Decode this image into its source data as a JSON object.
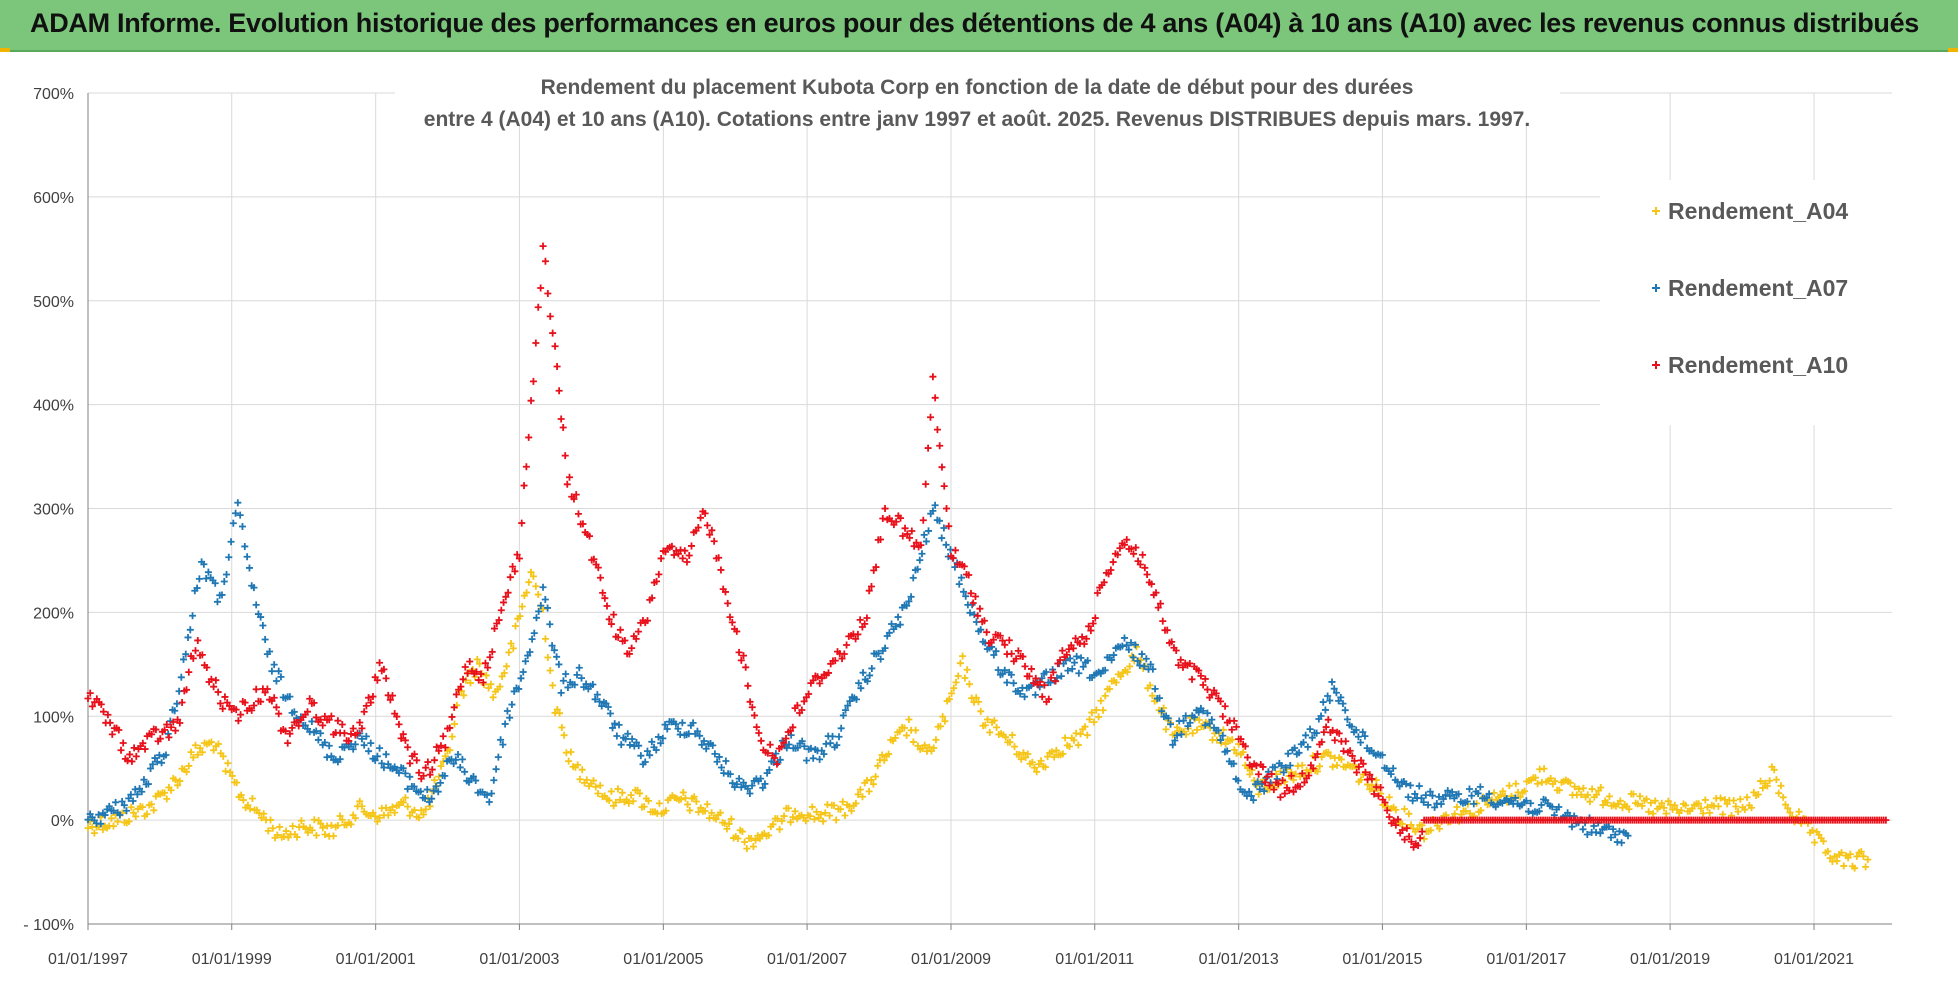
{
  "banner": {
    "title": "ADAM Informe. Evolution historique des performances en euros pour des détentions de 4 ans (A04) à 10 ans (A10) avec les revenus connus distribués"
  },
  "colors": {
    "A04": "#f5c518",
    "A07": "#1f77b4",
    "A10": "#e8101a",
    "banner": "#7cc67c"
  },
  "chart_data": {
    "type": "scatter",
    "title": "Rendement du placement Kubota Corp en fonction de la date de début pour des durées",
    "subtitle": "entre 4 (A04) et 10 ans (A10). Cotations entre janv 1997 et août. 2025. Revenus DISTRIBUES depuis mars. 1997.",
    "x_ticks": [
      "01/01/1997",
      "01/01/1999",
      "01/01/2001",
      "01/01/2003",
      "01/01/2005",
      "01/01/2007",
      "01/01/2009",
      "01/01/2011",
      "01/01/2013",
      "01/01/2015",
      "01/01/2017",
      "01/01/2019",
      "01/01/2021"
    ],
    "y_ticks": [
      "- 100%",
      "0%",
      "100%",
      "200%",
      "300%",
      "400%",
      "500%",
      "600%",
      "700%"
    ],
    "xlim": [
      "1997-01-01",
      "2022-02-01"
    ],
    "ylim": [
      -100,
      700
    ],
    "grid": true,
    "legend_position": "top-right",
    "marker": "+",
    "series": [
      {
        "name": "Rendement_A04",
        "key": "A04",
        "points": [
          [
            "1997-01-01",
            -5
          ],
          [
            "1997-06-01",
            0
          ],
          [
            "1997-12-01",
            15
          ],
          [
            "1998-04-01",
            40
          ],
          [
            "1998-07-01",
            65
          ],
          [
            "1998-10-01",
            75
          ],
          [
            "1998-12-01",
            50
          ],
          [
            "1999-03-01",
            20
          ],
          [
            "1999-06-01",
            5
          ],
          [
            "1999-09-01",
            -15
          ],
          [
            "2000-01-01",
            -5
          ],
          [
            "2000-06-01",
            -10
          ],
          [
            "2000-10-01",
            10
          ],
          [
            "2001-02-01",
            5
          ],
          [
            "2001-06-01",
            15
          ],
          [
            "2001-09-01",
            5
          ],
          [
            "2002-01-01",
            60
          ],
          [
            "2002-03-01",
            120
          ],
          [
            "2002-06-01",
            150
          ],
          [
            "2002-09-01",
            120
          ],
          [
            "2002-12-01",
            170
          ],
          [
            "2003-03-01",
            240
          ],
          [
            "2003-05-01",
            200
          ],
          [
            "2003-07-01",
            110
          ],
          [
            "2003-10-01",
            50
          ],
          [
            "2004-01-01",
            40
          ],
          [
            "2004-04-01",
            20
          ],
          [
            "2004-08-01",
            25
          ],
          [
            "2004-12-01",
            10
          ],
          [
            "2005-04-01",
            20
          ],
          [
            "2005-08-01",
            10
          ],
          [
            "2005-12-01",
            -5
          ],
          [
            "2006-03-01",
            -20
          ],
          [
            "2006-07-01",
            -10
          ],
          [
            "2006-11-01",
            10
          ],
          [
            "2007-03-01",
            5
          ],
          [
            "2007-07-01",
            10
          ],
          [
            "2007-11-01",
            30
          ],
          [
            "2008-03-01",
            70
          ],
          [
            "2008-06-01",
            90
          ],
          [
            "2008-09-01",
            60
          ],
          [
            "2008-12-01",
            100
          ],
          [
            "2009-03-01",
            150
          ],
          [
            "2009-06-01",
            100
          ],
          [
            "2009-09-01",
            85
          ],
          [
            "2009-12-01",
            70
          ],
          [
            "2010-03-01",
            50
          ],
          [
            "2010-07-01",
            70
          ],
          [
            "2010-11-01",
            80
          ],
          [
            "2011-02-01",
            110
          ],
          [
            "2011-05-01",
            140
          ],
          [
            "2011-08-01",
            160
          ],
          [
            "2011-11-01",
            120
          ],
          [
            "2012-02-01",
            80
          ],
          [
            "2012-05-01",
            90
          ],
          [
            "2012-09-01",
            85
          ],
          [
            "2013-01-01",
            70
          ],
          [
            "2013-04-01",
            30
          ],
          [
            "2013-08-01",
            40
          ],
          [
            "2013-12-01",
            50
          ],
          [
            "2014-04-01",
            60
          ],
          [
            "2014-08-01",
            50
          ],
          [
            "2014-12-01",
            30
          ],
          [
            "2015-04-01",
            5
          ],
          [
            "2015-08-01",
            -10
          ],
          [
            "2015-12-01",
            5
          ],
          [
            "2016-04-01",
            10
          ],
          [
            "2016-08-01",
            20
          ],
          [
            "2016-12-01",
            30
          ],
          [
            "2017-04-01",
            45
          ],
          [
            "2017-08-01",
            30
          ],
          [
            "2017-12-01",
            25
          ],
          [
            "2018-04-01",
            20
          ],
          [
            "2018-08-01",
            15
          ],
          [
            "2018-12-01",
            10
          ],
          [
            "2019-04-01",
            10
          ],
          [
            "2019-08-01",
            15
          ],
          [
            "2019-12-01",
            10
          ],
          [
            "2020-03-01",
            20
          ],
          [
            "2020-06-01",
            45
          ],
          [
            "2020-09-01",
            10
          ],
          [
            "2020-12-01",
            -10
          ],
          [
            "2021-03-01",
            -30
          ],
          [
            "2021-06-01",
            -40
          ],
          [
            "2021-10-01",
            -38
          ]
        ]
      },
      {
        "name": "Rendement_A07",
        "key": "A07",
        "points": [
          [
            "1997-01-01",
            0
          ],
          [
            "1997-06-01",
            10
          ],
          [
            "1997-10-01",
            30
          ],
          [
            "1998-02-01",
            70
          ],
          [
            "1998-05-01",
            150
          ],
          [
            "1998-08-01",
            250
          ],
          [
            "1998-11-01",
            210
          ],
          [
            "1999-02-01",
            300
          ],
          [
            "1999-04-01",
            240
          ],
          [
            "1999-07-01",
            160
          ],
          [
            "1999-10-01",
            120
          ],
          [
            "2000-02-01",
            90
          ],
          [
            "2000-06-01",
            60
          ],
          [
            "2000-10-01",
            80
          ],
          [
            "2001-02-01",
            60
          ],
          [
            "2001-06-01",
            40
          ],
          [
            "2001-10-01",
            20
          ],
          [
            "2002-02-01",
            60
          ],
          [
            "2002-05-01",
            40
          ],
          [
            "2002-08-01",
            20
          ],
          [
            "2002-11-01",
            100
          ],
          [
            "2003-02-01",
            150
          ],
          [
            "2003-05-01",
            220
          ],
          [
            "2003-08-01",
            130
          ],
          [
            "2003-11-01",
            140
          ],
          [
            "2004-02-01",
            120
          ],
          [
            "2004-06-01",
            80
          ],
          [
            "2004-10-01",
            60
          ],
          [
            "2005-02-01",
            90
          ],
          [
            "2005-06-01",
            90
          ],
          [
            "2005-10-01",
            60
          ],
          [
            "2006-02-01",
            30
          ],
          [
            "2006-06-01",
            40
          ],
          [
            "2006-10-01",
            80
          ],
          [
            "2007-02-01",
            60
          ],
          [
            "2007-06-01",
            80
          ],
          [
            "2007-10-01",
            130
          ],
          [
            "2008-02-01",
            170
          ],
          [
            "2008-06-01",
            210
          ],
          [
            "2008-10-01",
            300
          ],
          [
            "2009-02-01",
            240
          ],
          [
            "2009-06-01",
            180
          ],
          [
            "2009-10-01",
            140
          ],
          [
            "2010-02-01",
            120
          ],
          [
            "2010-06-01",
            140
          ],
          [
            "2010-10-01",
            150
          ],
          [
            "2011-02-01",
            140
          ],
          [
            "2011-06-01",
            170
          ],
          [
            "2011-10-01",
            150
          ],
          [
            "2012-02-01",
            80
          ],
          [
            "2012-06-01",
            110
          ],
          [
            "2012-10-01",
            80
          ],
          [
            "2013-02-01",
            20
          ],
          [
            "2013-06-01",
            40
          ],
          [
            "2013-10-01",
            60
          ],
          [
            "2014-02-01",
            90
          ],
          [
            "2014-05-01",
            130
          ],
          [
            "2014-09-01",
            80
          ],
          [
            "2015-01-01",
            60
          ],
          [
            "2015-05-01",
            30
          ],
          [
            "2015-09-01",
            20
          ],
          [
            "2016-01-01",
            20
          ],
          [
            "2016-05-01",
            25
          ],
          [
            "2016-09-01",
            20
          ],
          [
            "2017-01-01",
            15
          ],
          [
            "2017-05-01",
            10
          ],
          [
            "2017-09-01",
            0
          ],
          [
            "2018-01-01",
            -10
          ],
          [
            "2018-06-01",
            -15
          ]
        ]
      },
      {
        "name": "Rendement_A10",
        "key": "A10",
        "points": [
          [
            "1997-01-01",
            120
          ],
          [
            "1997-04-01",
            100
          ],
          [
            "1997-08-01",
            60
          ],
          [
            "1997-12-01",
            80
          ],
          [
            "1998-04-01",
            90
          ],
          [
            "1998-07-01",
            170
          ],
          [
            "1998-10-01",
            130
          ],
          [
            "1999-01-01",
            100
          ],
          [
            "1999-04-01",
            110
          ],
          [
            "1999-07-01",
            130
          ],
          [
            "1999-10-01",
            80
          ],
          [
            "2000-02-01",
            110
          ],
          [
            "2000-06-01",
            90
          ],
          [
            "2000-10-01",
            80
          ],
          [
            "2001-02-01",
            150
          ],
          [
            "2001-06-01",
            70
          ],
          [
            "2001-09-01",
            40
          ],
          [
            "2002-01-01",
            80
          ],
          [
            "2002-04-01",
            150
          ],
          [
            "2002-07-01",
            140
          ],
          [
            "2002-10-01",
            200
          ],
          [
            "2003-01-01",
            260
          ],
          [
            "2003-03-01",
            400
          ],
          [
            "2003-05-01",
            550
          ],
          [
            "2003-07-01",
            450
          ],
          [
            "2003-09-01",
            330
          ],
          [
            "2003-12-01",
            280
          ],
          [
            "2004-04-01",
            200
          ],
          [
            "2004-07-01",
            160
          ],
          [
            "2004-10-01",
            190
          ],
          [
            "2005-01-01",
            260
          ],
          [
            "2005-05-01",
            250
          ],
          [
            "2005-08-01",
            300
          ],
          [
            "2005-11-01",
            230
          ],
          [
            "2006-02-01",
            160
          ],
          [
            "2006-05-01",
            80
          ],
          [
            "2006-08-01",
            60
          ],
          [
            "2006-11-01",
            100
          ],
          [
            "2007-02-01",
            130
          ],
          [
            "2007-05-01",
            150
          ],
          [
            "2007-08-01",
            170
          ],
          [
            "2007-11-01",
            200
          ],
          [
            "2008-02-01",
            300
          ],
          [
            "2008-05-01",
            280
          ],
          [
            "2008-08-01",
            260
          ],
          [
            "2008-10-01",
            420
          ],
          [
            "2009-01-01",
            260
          ],
          [
            "2009-04-01",
            230
          ],
          [
            "2009-07-01",
            180
          ],
          [
            "2009-10-01",
            170
          ],
          [
            "2010-01-01",
            150
          ],
          [
            "2010-05-01",
            120
          ],
          [
            "2010-08-01",
            160
          ],
          [
            "2010-12-01",
            180
          ],
          [
            "2011-03-01",
            240
          ],
          [
            "2011-06-01",
            270
          ],
          [
            "2011-09-01",
            250
          ],
          [
            "2011-12-01",
            200
          ],
          [
            "2012-03-01",
            150
          ],
          [
            "2012-06-01",
            140
          ],
          [
            "2012-10-01",
            110
          ],
          [
            "2013-01-01",
            80
          ],
          [
            "2013-04-01",
            50
          ],
          [
            "2013-08-01",
            30
          ],
          [
            "2013-12-01",
            40
          ],
          [
            "2014-04-01",
            90
          ],
          [
            "2014-08-01",
            60
          ],
          [
            "2014-12-01",
            30
          ],
          [
            "2015-04-01",
            -10
          ],
          [
            "2015-07-01",
            -20
          ],
          [
            "2015-08-01",
            0
          ],
          [
            "2016-06-01",
            0
          ],
          [
            "2017-06-01",
            0
          ],
          [
            "2018-06-01",
            0
          ],
          [
            "2019-06-01",
            0
          ],
          [
            "2020-06-01",
            0
          ],
          [
            "2021-06-01",
            0
          ],
          [
            "2022-01-01",
            0
          ]
        ]
      }
    ]
  }
}
